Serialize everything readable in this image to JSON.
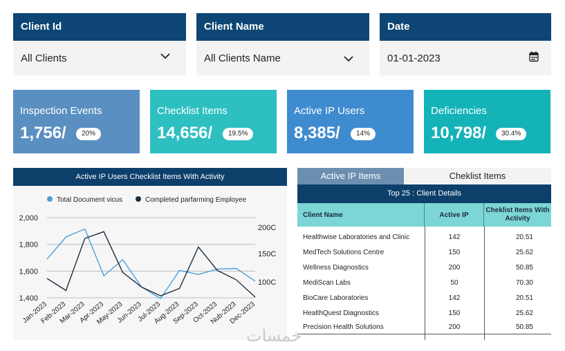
{
  "filters": [
    {
      "label": "Client Id",
      "value": "All Clients",
      "icon": "chevron-down-icon"
    },
    {
      "label": "Client Name",
      "value": "All Clients Name",
      "icon": "chevron-down-icon"
    },
    {
      "label": "Date",
      "value": "01-01-2023",
      "icon": "calendar-icon"
    }
  ],
  "kpis": [
    {
      "label": "Inspection Events",
      "value": "1,756/",
      "badge": "20%",
      "color": "#5a8fc1"
    },
    {
      "label": "Checklist Items",
      "value": "14,656/",
      "badge": "19.5%",
      "color": "#2ebfc1"
    },
    {
      "label": "Active IP Users",
      "value": "8,385/",
      "badge": "14%",
      "color": "#3f8bcf"
    },
    {
      "label": "Deficiencies",
      "value": "10,798/",
      "badge": "30.4%",
      "color": "#13b3b8"
    }
  ],
  "chart_panel": {
    "title": "Active IP Users Checklist Items With Activity"
  },
  "chart_data": {
    "type": "line",
    "categories": [
      "Jan-2023",
      "Feb-2023",
      "Mar-2023",
      "Apr-2023",
      "May-2023",
      "Jun-2023",
      "Jul-2023",
      "Aug-2023",
      "Sep-2023",
      "Oct-2023",
      "Nub-2023",
      "Dec-2023"
    ],
    "series": [
      {
        "name": "Total Document vicus",
        "color": "#4b9fdc",
        "values": [
          1690,
          1855,
          1915,
          1565,
          1685,
          1480,
          1395,
          1605,
          1575,
          1615,
          1620,
          1525
        ]
      },
      {
        "name": "Completed parfarming Employee",
        "color": "#1f2d3d",
        "values": [
          1545,
          1455,
          1845,
          1895,
          1590,
          1480,
          1415,
          1470,
          1780,
          1605,
          1535,
          1405
        ]
      }
    ],
    "yticks": [
      2000,
      1800,
      1600,
      1400
    ],
    "ylim": [
      1400,
      2000
    ],
    "right_ticks": [
      "200C",
      "150C",
      "100C"
    ],
    "legend_position": "top"
  },
  "table_panel": {
    "tabs": [
      "Active IP Items",
      "Cheklist Items"
    ],
    "title": "Top 25 : Client Details",
    "columns": [
      "Client Name",
      "Active IP",
      "Cheklist Items With Activity"
    ],
    "rows": [
      [
        "Healthwise Laboratories and Clinic",
        "142",
        "20.51"
      ],
      [
        "MedTech Solutions Centre",
        "150",
        "25.62"
      ],
      [
        "Wellness Diagnostics",
        "200",
        "50.85"
      ],
      [
        "MediScan Labs",
        "50",
        "70.30"
      ],
      [
        "BioCare Laboratories",
        "142",
        "20.51"
      ],
      [
        "HealthQuest Diagnostics",
        "150",
        "25.62"
      ],
      [
        "Precision Health Solutions",
        "200",
        "50.85"
      ]
    ]
  },
  "watermark": "خمسات"
}
